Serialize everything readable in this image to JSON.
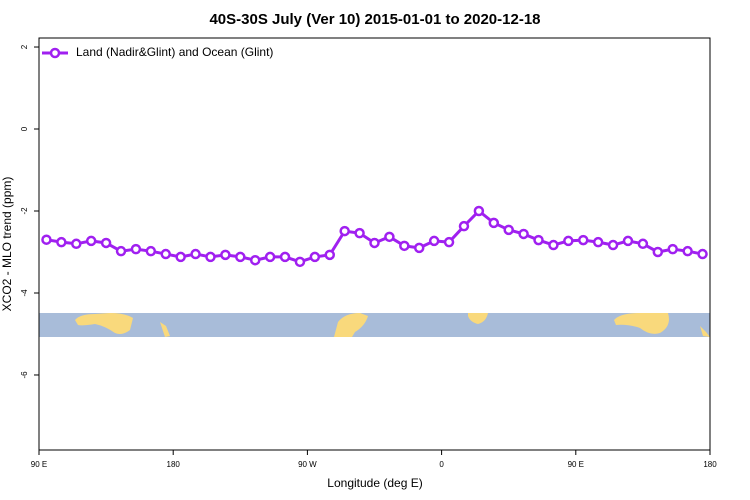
{
  "chart_data": {
    "type": "line",
    "title": "40S-30S July (Ver 10)   2015-01-01 to 2020-12-18",
    "x_label": "Longitude (deg E)",
    "y_label": "XCO2 - MLO trend (ppm)",
    "x": [
      95,
      105,
      115,
      125,
      135,
      145,
      155,
      165,
      175,
      185,
      195,
      205,
      215,
      225,
      235,
      245,
      255,
      265,
      275,
      285,
      295,
      305,
      315,
      325,
      335,
      345,
      355,
      365,
      375,
      385,
      395,
      405,
      415,
      425,
      435,
      445,
      455,
      465,
      475,
      485,
      495,
      505,
      515,
      525,
      535
    ],
    "series": [
      {
        "name": "Land (Nadir&Glint) and Ocean (Glint)",
        "color": "#a020f0",
        "values": [
          -2.7,
          -2.76,
          -2.8,
          -2.73,
          -2.78,
          -2.98,
          -2.93,
          -2.98,
          -3.05,
          -3.12,
          -3.05,
          -3.12,
          -3.07,
          -3.12,
          -3.2,
          -3.12,
          -3.12,
          -3.24,
          -3.12,
          -3.07,
          -2.49,
          -2.54,
          -2.78,
          -2.63,
          -2.85,
          -2.9,
          -2.73,
          -2.76,
          -2.37,
          -2.0,
          -2.29,
          -2.46,
          -2.56,
          -2.71,
          -2.83,
          -2.73,
          -2.71,
          -2.76,
          -2.83,
          -2.73,
          -2.8,
          -3.0,
          -2.93,
          -2.98,
          -3.05
        ]
      }
    ],
    "xlim": [
      90,
      540
    ],
    "xticks": [
      {
        "value": 90,
        "label": "90 E"
      },
      180,
      {
        "value": 270,
        "label": "90 W"
      },
      {
        "value": 360,
        "label": "0"
      },
      {
        "value": 450,
        "label": "90 E"
      },
      {
        "value": 540,
        "label": "180"
      }
    ],
    "ylim": [
      -7.83,
      2.22
    ],
    "yticks": [
      2,
      0,
      -2,
      -4,
      -6
    ],
    "legend": "top-left"
  }
}
